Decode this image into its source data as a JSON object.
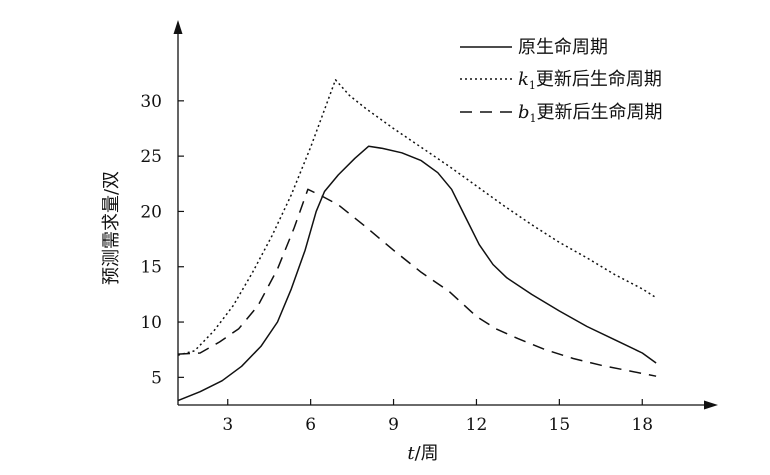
{
  "chart_data": {
    "type": "line",
    "xlabel": {
      "var": "t",
      "text": "/周"
    },
    "ylabel": "预测需求量/双",
    "xlim": [
      1.2,
      19.8
    ],
    "ylim": [
      2.5,
      35.5
    ],
    "x_ticks": [
      3,
      6,
      9,
      12,
      15,
      18
    ],
    "y_ticks": [
      5,
      10,
      15,
      20,
      25,
      30
    ],
    "legend_position": "top-right",
    "series": [
      {
        "key": "original",
        "legend": {
          "var": "",
          "sub": "",
          "text": "原生命周期"
        },
        "style": "solid",
        "points": [
          [
            1.2,
            2.9
          ],
          [
            2,
            3.7
          ],
          [
            2.8,
            4.7
          ],
          [
            3.5,
            6.0
          ],
          [
            4.2,
            7.8
          ],
          [
            4.8,
            10.0
          ],
          [
            5.3,
            13.0
          ],
          [
            5.8,
            16.5
          ],
          [
            6.2,
            20.0
          ],
          [
            6.5,
            21.8
          ],
          [
            7.0,
            23.3
          ],
          [
            7.6,
            24.8
          ],
          [
            8.1,
            25.9
          ],
          [
            8.6,
            25.7
          ],
          [
            9.3,
            25.3
          ],
          [
            10.0,
            24.6
          ],
          [
            10.6,
            23.5
          ],
          [
            11.1,
            22.0
          ],
          [
            11.6,
            19.5
          ],
          [
            12.1,
            17.0
          ],
          [
            12.6,
            15.2
          ],
          [
            13.1,
            14.0
          ],
          [
            14.0,
            12.5
          ],
          [
            15.0,
            11.0
          ],
          [
            16.0,
            9.6
          ],
          [
            17.0,
            8.4
          ],
          [
            18.0,
            7.2
          ],
          [
            18.5,
            6.3
          ]
        ]
      },
      {
        "key": "k1",
        "legend": {
          "var": "k",
          "sub": "1",
          "text": "更新后生命周期"
        },
        "style": "dotted",
        "points": [
          [
            1.2,
            7.0
          ],
          [
            1.8,
            7.4
          ],
          [
            2.5,
            9.2
          ],
          [
            3.2,
            11.5
          ],
          [
            3.9,
            14.5
          ],
          [
            4.6,
            17.8
          ],
          [
            5.3,
            21.5
          ],
          [
            6.0,
            25.8
          ],
          [
            6.5,
            29.2
          ],
          [
            6.9,
            31.9
          ],
          [
            7.4,
            30.5
          ],
          [
            8.0,
            29.3
          ],
          [
            9.0,
            27.5
          ],
          [
            10.0,
            25.8
          ],
          [
            11.0,
            24.1
          ],
          [
            12.0,
            22.3
          ],
          [
            13.0,
            20.5
          ],
          [
            14.0,
            18.8
          ],
          [
            15.0,
            17.2
          ],
          [
            16.0,
            15.8
          ],
          [
            17.0,
            14.3
          ],
          [
            18.0,
            13.0
          ],
          [
            18.5,
            12.2
          ]
        ]
      },
      {
        "key": "b1",
        "legend": {
          "var": "b",
          "sub": "1",
          "text": "更新后生命周期"
        },
        "style": "dashed",
        "points": [
          [
            1.2,
            7.1
          ],
          [
            2.0,
            7.2
          ],
          [
            2.7,
            8.2
          ],
          [
            3.4,
            9.4
          ],
          [
            4.1,
            11.5
          ],
          [
            4.8,
            14.8
          ],
          [
            5.4,
            18.5
          ],
          [
            5.9,
            22.0
          ],
          [
            6.4,
            21.4
          ],
          [
            7.0,
            20.6
          ],
          [
            8.0,
            18.6
          ],
          [
            9.0,
            16.5
          ],
          [
            10.0,
            14.5
          ],
          [
            11.0,
            12.8
          ],
          [
            12.0,
            10.5
          ],
          [
            12.7,
            9.4
          ],
          [
            13.5,
            8.5
          ],
          [
            14.5,
            7.5
          ],
          [
            15.5,
            6.7
          ],
          [
            16.5,
            6.1
          ],
          [
            17.5,
            5.6
          ],
          [
            18.5,
            5.1
          ]
        ]
      }
    ]
  }
}
